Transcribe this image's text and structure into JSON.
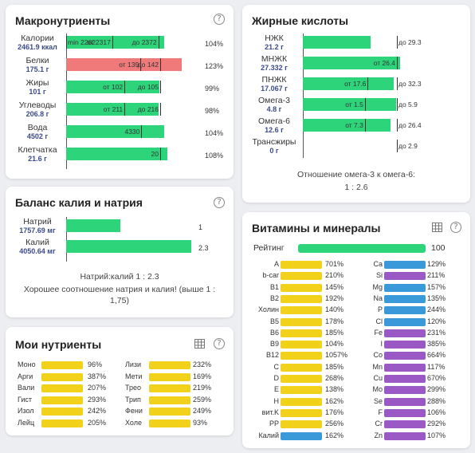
{
  "colors": {
    "green": "#2ed47a",
    "red": "#f07a7a",
    "yellow": "#f2d11b",
    "blue": "#3a9ad9",
    "purple": "#9b59c6"
  },
  "macro": {
    "title": "Макронутриенты",
    "rows": [
      {
        "name": "Калории",
        "value": "2461.9 ккал",
        "bar": 1.04,
        "color": "green",
        "texts": [
          "min 2262",
          "от 2317",
          "до 2372"
        ],
        "pct": "104%"
      },
      {
        "name": "Белки",
        "value": "175.1 г",
        "bar": 1.23,
        "color": "red",
        "texts": [
          "от 139",
          "до 142"
        ],
        "pct": "123%"
      },
      {
        "name": "Жиры",
        "value": "101 г",
        "bar": 0.99,
        "color": "green",
        "texts": [
          "от 102",
          "до 105"
        ],
        "pct": "99%"
      },
      {
        "name": "Углеводы",
        "value": "206.8 г",
        "bar": 0.98,
        "color": "green",
        "texts": [
          "от 211",
          "до 216"
        ],
        "pct": "98%"
      },
      {
        "name": "Вода",
        "value": "4502 г",
        "bar": 1.04,
        "color": "green",
        "texts": [
          "4330"
        ],
        "pct": "104%"
      },
      {
        "name": "Клетчатка",
        "value": "21.6 г",
        "bar": 1.08,
        "color": "green",
        "texts": [
          "20"
        ],
        "pct": "108%"
      }
    ]
  },
  "fatty": {
    "title": "Жирные кислоты",
    "rows": [
      {
        "name": "НЖК",
        "value": "21.2 г",
        "bar": 0.72,
        "color": "green",
        "texts": [
          "до 29.3"
        ]
      },
      {
        "name": "МНЖК",
        "value": "27.332 г",
        "bar": 1.03,
        "color": "green",
        "texts": [
          "от 26.4"
        ]
      },
      {
        "name": "ПНЖК",
        "value": "17.067 г",
        "bar": 0.97,
        "color": "green",
        "texts": [
          "от 17.6",
          "до 32.3"
        ]
      },
      {
        "name": "Омега-3",
        "value": "4.8 г",
        "bar": 0.99,
        "color": "green",
        "texts": [
          "от 1.5",
          "до 5.9"
        ]
      },
      {
        "name": "Омега-6",
        "value": "12.6 г",
        "bar": 0.93,
        "color": "green",
        "texts": [
          "от 7.3",
          "до 26.4"
        ]
      },
      {
        "name": "Трансжиры",
        "value": "0 г",
        "bar": 0,
        "color": "green",
        "texts": [
          "до 2.9"
        ]
      }
    ],
    "ratio_label": "Отношение омега-3 к омега-6:",
    "ratio_value": "1 : 2.6"
  },
  "balance": {
    "title": "Баланс калия и натрия",
    "rows": [
      {
        "name": "Натрий",
        "value": "1757.69 мг",
        "bar": 0.38,
        "color": "green",
        "right": "1"
      },
      {
        "name": "Калий",
        "value": "4050.64 мг",
        "bar": 0.87,
        "color": "green",
        "right": "2.3"
      }
    ],
    "ratio": "Натрий:калий 1 : 2.3",
    "comment": "Хорошее соотношение натрия и калия! (выше 1 : 1,75)"
  },
  "vitamins": {
    "title": "Витамины и минералы",
    "rating_label": "Рейтинг",
    "rating_value": "100",
    "rating_fill": 1.0,
    "left": [
      {
        "name": "A",
        "pct": "701%",
        "color": "yellow"
      },
      {
        "name": "b-car",
        "pct": "210%",
        "color": "yellow"
      },
      {
        "name": "B1",
        "pct": "145%",
        "color": "yellow"
      },
      {
        "name": "B2",
        "pct": "192%",
        "color": "yellow"
      },
      {
        "name": "Холин",
        "pct": "140%",
        "color": "yellow"
      },
      {
        "name": "B5",
        "pct": "178%",
        "color": "yellow"
      },
      {
        "name": "B6",
        "pct": "185%",
        "color": "yellow"
      },
      {
        "name": "B9",
        "pct": "104%",
        "color": "yellow"
      },
      {
        "name": "B12",
        "pct": "1057%",
        "color": "yellow"
      },
      {
        "name": "C",
        "pct": "185%",
        "color": "yellow"
      },
      {
        "name": "D",
        "pct": "268%",
        "color": "yellow"
      },
      {
        "name": "E",
        "pct": "138%",
        "color": "yellow"
      },
      {
        "name": "H",
        "pct": "162%",
        "color": "yellow"
      },
      {
        "name": "вит.K",
        "pct": "176%",
        "color": "yellow"
      },
      {
        "name": "PP",
        "pct": "256%",
        "color": "yellow"
      },
      {
        "name": "Калий",
        "pct": "162%",
        "color": "blue"
      }
    ],
    "right": [
      {
        "name": "Ca",
        "pct": "129%",
        "color": "blue"
      },
      {
        "name": "Si",
        "pct": "211%",
        "color": "purple"
      },
      {
        "name": "Mg",
        "pct": "157%",
        "color": "blue"
      },
      {
        "name": "Na",
        "pct": "135%",
        "color": "blue"
      },
      {
        "name": "P",
        "pct": "244%",
        "color": "blue"
      },
      {
        "name": "Cl",
        "pct": "120%",
        "color": "blue"
      },
      {
        "name": "Fe",
        "pct": "231%",
        "color": "purple"
      },
      {
        "name": "I",
        "pct": "385%",
        "color": "purple"
      },
      {
        "name": "Co",
        "pct": "664%",
        "color": "purple"
      },
      {
        "name": "Mn",
        "pct": "117%",
        "color": "purple"
      },
      {
        "name": "Cu",
        "pct": "670%",
        "color": "purple"
      },
      {
        "name": "Mo",
        "pct": "299%",
        "color": "purple"
      },
      {
        "name": "Se",
        "pct": "288%",
        "color": "purple"
      },
      {
        "name": "F",
        "pct": "106%",
        "color": "purple"
      },
      {
        "name": "Cr",
        "pct": "292%",
        "color": "purple"
      },
      {
        "name": "Zn",
        "pct": "107%",
        "color": "purple"
      }
    ]
  },
  "my": {
    "title": "Мои нутриенты",
    "left": [
      {
        "name": "Моно",
        "pct": "96%"
      },
      {
        "name": "Арги",
        "pct": "387%"
      },
      {
        "name": "Вали",
        "pct": "207%"
      },
      {
        "name": "Гист",
        "pct": "293%"
      },
      {
        "name": "Изол",
        "pct": "242%"
      },
      {
        "name": "Лейц",
        "pct": "205%"
      }
    ],
    "right": [
      {
        "name": "Лизи",
        "pct": "232%"
      },
      {
        "name": "Мети",
        "pct": "169%"
      },
      {
        "name": "Трео",
        "pct": "219%"
      },
      {
        "name": "Трип",
        "pct": "259%"
      },
      {
        "name": "Фени",
        "pct": "249%"
      },
      {
        "name": "Холе",
        "pct": "93%"
      }
    ]
  }
}
